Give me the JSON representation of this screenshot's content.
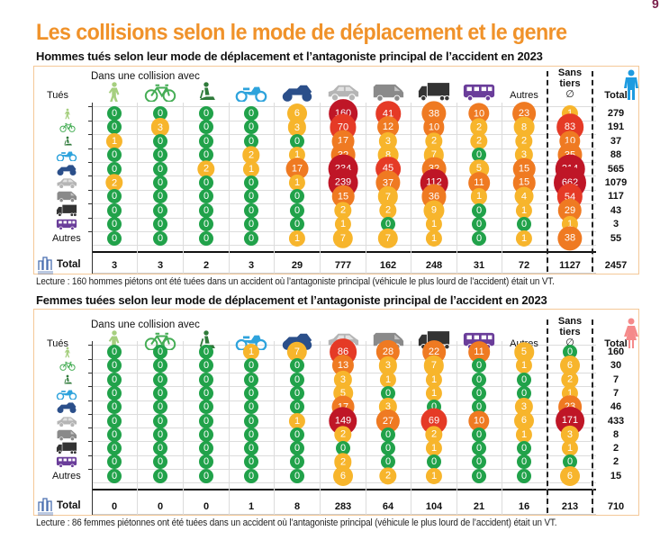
{
  "title": "Les collisions selon le mode de déplacement et le genre",
  "page_number": "9",
  "colors": {
    "title": "#f0922a",
    "zero": "#21a24a",
    "low": "#f7b52c",
    "mid": "#ef7a22",
    "high": "#e53a26",
    "very_high": "#bf1627",
    "panel_border": "#f4c898",
    "men_icon": "#1e9be0",
    "women_icon": "#f58a8a"
  },
  "legend_scale": "0 = vert, 1–9 = jaune, 10–39 = orange, 40–99 = rouge, 100+ = rouge foncé",
  "chart_data": [
    {
      "type": "table",
      "title": "Hommes tués selon leur mode de déplacement et l’antagoniste principal de l’accident en 2023",
      "column_group_label": "Dans une collision avec",
      "row_header": "Tués",
      "columns": [
        "piéton",
        "vélo",
        "EDP",
        "cyclo",
        "moto",
        "VT",
        "VU",
        "PL",
        "TC",
        "Autres",
        "Sans tiers",
        "Total"
      ],
      "column_labels": {
        "autres": "Autres",
        "sans_tiers_1": "Sans",
        "sans_tiers_2": "tiers",
        "sans_tiers_3": "∅",
        "total": "Total"
      },
      "rows": [
        "piéton",
        "vélo",
        "EDP",
        "cyclo",
        "moto",
        "VT",
        "VU",
        "PL",
        "TC",
        "Autres"
      ],
      "row_label_autres": "Autres",
      "gender_icon": "man-icon",
      "values": [
        [
          0,
          0,
          0,
          0,
          6,
          160,
          41,
          38,
          10,
          23,
          1,
          279
        ],
        [
          0,
          3,
          0,
          0,
          3,
          70,
          12,
          10,
          2,
          8,
          83,
          191
        ],
        [
          1,
          0,
          0,
          0,
          0,
          17,
          3,
          2,
          2,
          2,
          10,
          37
        ],
        [
          0,
          0,
          0,
          2,
          1,
          32,
          8,
          7,
          0,
          3,
          35,
          88
        ],
        [
          0,
          0,
          2,
          1,
          17,
          234,
          45,
          32,
          5,
          15,
          214,
          565
        ],
        [
          2,
          0,
          0,
          0,
          1,
          239,
          37,
          112,
          11,
          15,
          662,
          1079
        ],
        [
          0,
          0,
          0,
          0,
          0,
          15,
          7,
          36,
          1,
          4,
          54,
          117
        ],
        [
          0,
          0,
          0,
          0,
          0,
          2,
          2,
          9,
          0,
          1,
          29,
          43
        ],
        [
          0,
          0,
          0,
          0,
          0,
          1,
          0,
          1,
          0,
          0,
          1,
          3
        ],
        [
          0,
          0,
          0,
          0,
          1,
          7,
          7,
          1,
          0,
          1,
          38,
          55
        ]
      ],
      "total_label": "Total",
      "totals": [
        3,
        3,
        2,
        3,
        29,
        777,
        162,
        248,
        31,
        72,
        1127,
        2457
      ],
      "lecture": "Lecture : 160 hommes piétons ont été tuées dans un accident où l’antagoniste principal (véhicule le plus lourd de l’accident) était un VT."
    },
    {
      "type": "table",
      "title": "Femmes tuées selon leur mode de déplacement et l’antagoniste principal de l’accident en 2023",
      "column_group_label": "Dans une collision avec",
      "row_header": "Tués",
      "columns": [
        "piéton",
        "vélo",
        "EDP",
        "cyclo",
        "moto",
        "VT",
        "VU",
        "PL",
        "TC",
        "Autres",
        "Sans tiers",
        "Total"
      ],
      "column_labels": {
        "autres": "Autres",
        "sans_tiers_1": "Sans",
        "sans_tiers_2": "tiers",
        "sans_tiers_3": "∅",
        "total": "Total"
      },
      "rows": [
        "piéton",
        "vélo",
        "EDP",
        "cyclo",
        "moto",
        "VT",
        "VU",
        "PL",
        "TC",
        "Autres"
      ],
      "row_label_autres": "Autres",
      "gender_icon": "woman-icon",
      "values": [
        [
          0,
          0,
          0,
          1,
          7,
          86,
          28,
          22,
          11,
          5,
          0,
          160
        ],
        [
          0,
          0,
          0,
          0,
          0,
          13,
          3,
          7,
          0,
          1,
          6,
          30
        ],
        [
          0,
          0,
          0,
          0,
          0,
          3,
          1,
          1,
          0,
          0,
          2,
          7
        ],
        [
          0,
          0,
          0,
          0,
          0,
          5,
          0,
          1,
          0,
          0,
          1,
          7
        ],
        [
          0,
          0,
          0,
          0,
          0,
          17,
          3,
          0,
          0,
          3,
          23,
          46
        ],
        [
          0,
          0,
          0,
          0,
          1,
          149,
          27,
          69,
          10,
          6,
          171,
          433
        ],
        [
          0,
          0,
          0,
          0,
          0,
          2,
          0,
          2,
          0,
          1,
          3,
          8
        ],
        [
          0,
          0,
          0,
          0,
          0,
          0,
          0,
          1,
          0,
          0,
          1,
          2
        ],
        [
          0,
          0,
          0,
          0,
          0,
          2,
          0,
          0,
          0,
          0,
          0,
          2
        ],
        [
          0,
          0,
          0,
          0,
          0,
          6,
          2,
          1,
          0,
          0,
          6,
          15
        ]
      ],
      "total_label": "Total",
      "totals": [
        0,
        0,
        0,
        1,
        8,
        283,
        64,
        104,
        21,
        16,
        213,
        710
      ],
      "lecture": "Lecture : 86 femmes piétonnes ont été tuées dans un accident où l’antagoniste principal (véhicule le plus lourd de l’accident) était un VT."
    }
  ]
}
